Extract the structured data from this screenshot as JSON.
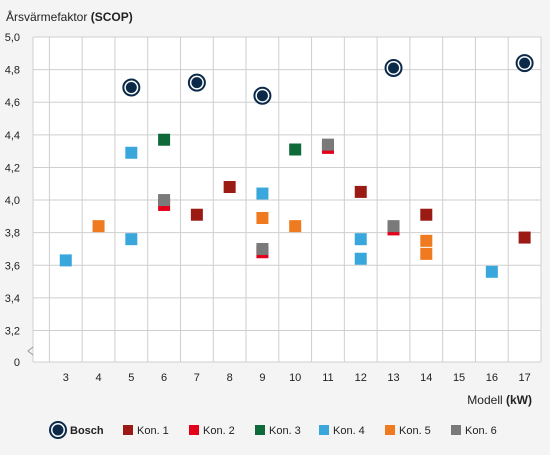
{
  "chart_data": {
    "type": "scatter",
    "ylabel_main": "Årsvärmefaktor",
    "ylabel_unit": "(SCOP)",
    "xlabel_main": "Modell",
    "xlabel_unit": "(kW)",
    "x_categories": [
      "3",
      "4",
      "5",
      "6",
      "7",
      "8",
      "9",
      "10",
      "11",
      "12",
      "13",
      "14",
      "15",
      "16",
      "17"
    ],
    "y_ticks": [
      "0",
      "3,2",
      "3,4",
      "3,6",
      "3,8",
      "4,0",
      "4,2",
      "4,4",
      "4,6",
      "4,8",
      "5,0"
    ],
    "ylim": [
      3.0,
      5.0
    ],
    "y_axis_break": true,
    "grid": true,
    "legend_position": "bottom",
    "series": [
      {
        "name": "Bosch",
        "marker": "ring",
        "color": "#0b2a4a",
        "points": [
          [
            5,
            4.69
          ],
          [
            7,
            4.72
          ],
          [
            9,
            4.64
          ],
          [
            13,
            4.81
          ],
          [
            17,
            4.84
          ]
        ]
      },
      {
        "name": "Kon. 1",
        "marker": "square",
        "color": "#9b1a14",
        "points": [
          [
            7,
            3.91
          ],
          [
            8,
            4.08
          ],
          [
            11,
            4.33
          ],
          [
            12,
            4.05
          ],
          [
            14,
            3.91
          ],
          [
            17,
            3.77
          ]
        ]
      },
      {
        "name": "Kon. 2",
        "marker": "square",
        "color": "#e2001a",
        "points": [
          [
            6,
            3.97
          ],
          [
            9,
            3.68
          ],
          [
            11,
            4.32
          ],
          [
            13,
            3.82
          ]
        ]
      },
      {
        "name": "Kon. 3",
        "marker": "square",
        "color": "#0f6a3a",
        "points": [
          [
            6,
            4.37
          ],
          [
            10,
            4.31
          ]
        ]
      },
      {
        "name": "Kon. 4",
        "marker": "square",
        "color": "#3aa7dc",
        "points": [
          [
            3,
            3.63
          ],
          [
            5,
            4.29
          ],
          [
            5,
            3.76
          ],
          [
            9,
            4.04
          ],
          [
            12,
            3.76
          ],
          [
            12,
            3.64
          ],
          [
            16,
            3.56
          ]
        ]
      },
      {
        "name": "Kon. 5",
        "marker": "square",
        "color": "#ef7a1f",
        "points": [
          [
            4,
            3.84
          ],
          [
            9,
            3.89
          ],
          [
            10,
            3.84
          ],
          [
            14,
            3.75
          ],
          [
            14,
            3.67
          ]
        ]
      },
      {
        "name": "Kon. 6",
        "marker": "square",
        "color": "#7a7a7a",
        "points": [
          [
            6,
            4.0
          ],
          [
            9,
            3.7
          ],
          [
            11,
            4.34
          ],
          [
            13,
            3.84
          ]
        ]
      }
    ]
  }
}
